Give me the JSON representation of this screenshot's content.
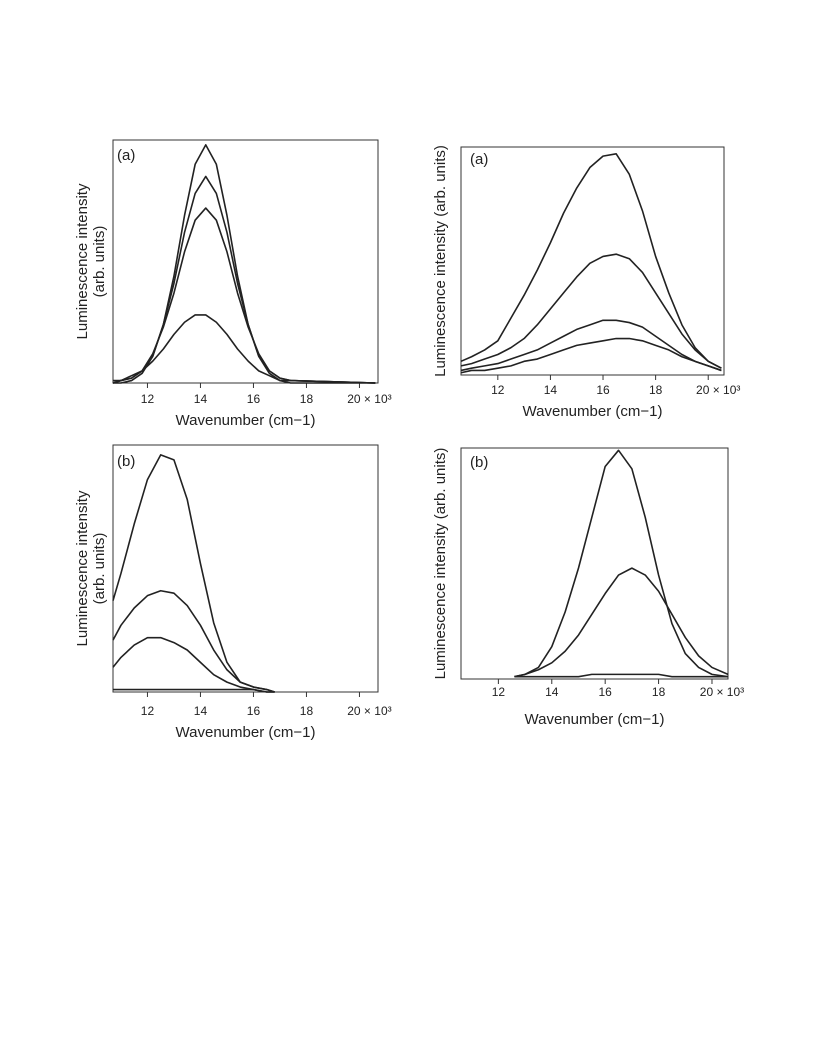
{
  "chart_data": [
    {
      "type": "line",
      "panel_label": "(a)",
      "x_label": "Wavenumber (cm−1)",
      "y_label": [
        "Luminescence intensity",
        "(arb. units)"
      ],
      "x": [
        10.7,
        11.0,
        11.4,
        11.8,
        12.2,
        12.6,
        13.0,
        13.4,
        13.8,
        14.2,
        14.6,
        15.0,
        15.4,
        15.8,
        16.2,
        16.6,
        17.0,
        17.4,
        20.6
      ],
      "series": [
        {
          "color": "#222222",
          "values": [
            0,
            0,
            1,
            4,
            11,
            24,
            44,
            69,
            90,
            98,
            90,
            69,
            44,
            24,
            11,
            4,
            1,
            0,
            0
          ]
        },
        {
          "color": "#222222",
          "values": [
            0,
            1,
            2,
            5,
            11,
            24,
            41,
            62,
            78,
            85,
            78,
            62,
            41,
            24,
            11,
            5,
            2,
            1,
            0
          ]
        },
        {
          "color": "#222222",
          "values": [
            0,
            1,
            2,
            5,
            12,
            23,
            37,
            54,
            67,
            72,
            67,
            54,
            37,
            23,
            12,
            5,
            2,
            1,
            0
          ]
        },
        {
          "color": "#222222",
          "values": [
            1,
            1,
            3,
            5,
            9,
            14,
            20,
            25,
            28,
            28,
            25,
            20,
            14,
            9,
            5,
            3,
            1,
            1,
            0
          ]
        }
      ],
      "xlim": [
        10.7,
        20.7
      ],
      "ylim": [
        0,
        100
      ],
      "xticks": [
        12,
        14,
        16,
        18,
        {
          "value": 20,
          "label": "20 × 10³"
        }
      ]
    },
    {
      "type": "line",
      "panel_label": "(a)",
      "x_label": "Wavenumber (cm−1)",
      "y_label": "Luminescence intensity (arb. units)",
      "x": [
        10.6,
        11.0,
        11.5,
        12.0,
        12.5,
        13.0,
        13.5,
        14.0,
        14.5,
        15.0,
        15.5,
        16.0,
        16.5,
        17.0,
        17.5,
        18.0,
        18.5,
        19.0,
        19.5,
        20.0,
        20.5
      ],
      "series": [
        {
          "color": "#222222",
          "values": [
            6,
            8,
            11,
            15,
            25,
            35,
            46,
            58,
            71,
            82,
            91,
            96,
            97,
            88,
            72,
            52,
            36,
            22,
            12,
            6,
            3
          ]
        },
        {
          "color": "#222222",
          "values": [
            4,
            5,
            7,
            9,
            12,
            16,
            22,
            29,
            36,
            43,
            49,
            52,
            53,
            51,
            45,
            36,
            27,
            18,
            11,
            6,
            3
          ]
        },
        {
          "color": "#222222",
          "values": [
            2,
            3,
            4,
            5,
            7,
            9,
            11,
            14,
            17,
            20,
            22,
            24,
            24,
            23,
            21,
            17,
            13,
            9,
            6,
            4,
            2
          ]
        },
        {
          "color": "#222222",
          "values": [
            1,
            2,
            2,
            3,
            4,
            6,
            7,
            9,
            11,
            13,
            14,
            15,
            16,
            16,
            15,
            13,
            11,
            8,
            6,
            4,
            2
          ]
        }
      ],
      "xlim": [
        10.6,
        20.6
      ],
      "ylim": [
        0,
        100
      ],
      "xticks": [
        12,
        14,
        16,
        18,
        {
          "value": 20,
          "label": "20 × 10³"
        }
      ]
    },
    {
      "type": "line",
      "panel_label": "(b)",
      "x_label": "Wavenumber (cm−1)",
      "y_label": [
        "Luminescence intensity",
        "(arb. units)"
      ],
      "x": [
        10.7,
        11.0,
        11.5,
        12.0,
        12.5,
        13.0,
        13.5,
        14.0,
        14.5,
        15.0,
        15.5,
        16.0,
        16.5,
        16.8
      ],
      "series": [
        {
          "color": "#222222",
          "values": [
            37,
            48,
            68,
            86,
            96,
            94,
            78,
            52,
            28,
            12,
            4,
            2,
            1,
            0
          ]
        },
        {
          "color": "#222222",
          "values": [
            21,
            27,
            34,
            39,
            41,
            40,
            35,
            27,
            17,
            9,
            4,
            2,
            1,
            0
          ]
        },
        {
          "color": "#222222",
          "values": [
            10,
            14,
            19,
            22,
            22,
            20,
            17,
            12,
            7,
            4,
            2,
            1,
            0,
            0
          ]
        },
        {
          "color": "#222222",
          "values": [
            1,
            1,
            1,
            1,
            1,
            1,
            1,
            1,
            1,
            1,
            1,
            1,
            0,
            0
          ]
        }
      ],
      "xlim": [
        10.7,
        20.7
      ],
      "ylim": [
        0,
        100
      ],
      "xticks": [
        12,
        14,
        16,
        18,
        {
          "value": 20,
          "label": "20 × 10³"
        }
      ]
    },
    {
      "type": "line",
      "panel_label": "(b)",
      "x_label": "Wavenumber (cm−1)",
      "y_label": "Luminescence intensity (arb. units)",
      "x": [
        12.6,
        13.0,
        13.5,
        14.0,
        14.5,
        15.0,
        15.5,
        16.0,
        16.5,
        17.0,
        17.5,
        18.0,
        18.5,
        19.0,
        19.5,
        20.0,
        20.6
      ],
      "series": [
        {
          "color": "#222222",
          "values": [
            1,
            2,
            5,
            14,
            29,
            48,
            70,
            92,
            99,
            91,
            70,
            45,
            24,
            11,
            5,
            2,
            1
          ]
        },
        {
          "color": "#222222",
          "values": [
            1,
            2,
            4,
            7,
            12,
            19,
            28,
            37,
            45,
            48,
            45,
            38,
            28,
            18,
            10,
            5,
            2
          ]
        },
        {
          "color": "#222222",
          "values": [
            1,
            1,
            1,
            1,
            1,
            1,
            2,
            2,
            2,
            2,
            2,
            2,
            1,
            1,
            1,
            1,
            1
          ]
        }
      ],
      "xlim": [
        10.6,
        20.6
      ],
      "ylim": [
        0,
        100
      ],
      "xticks": [
        12,
        14,
        16,
        18,
        {
          "value": 20,
          "label": "20 × 10³"
        }
      ]
    }
  ]
}
